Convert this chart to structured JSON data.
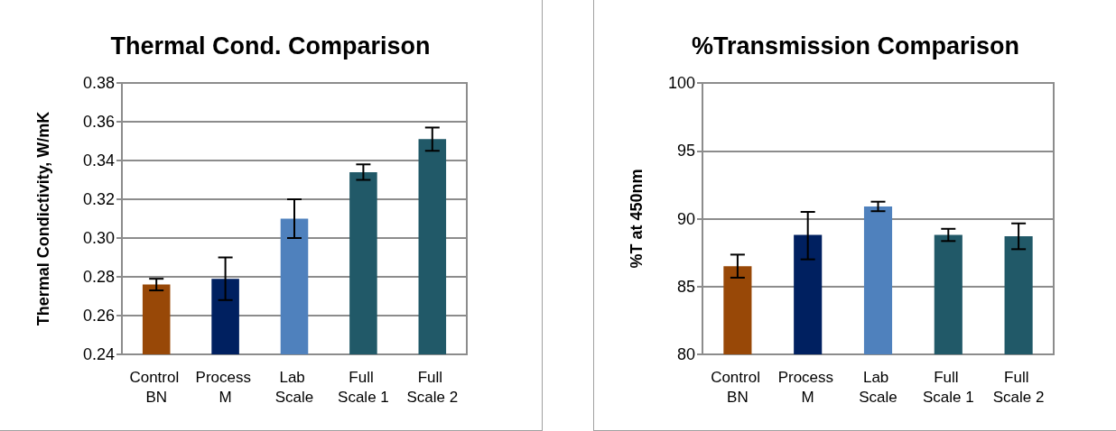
{
  "chart_data": [
    {
      "type": "bar",
      "title": "Thermal Cond. Comparison",
      "ylabel": "Thermal Condictivity, W/mK",
      "categories": [
        "Control BN",
        "Process M",
        "Lab Scale",
        "Full Scale 1",
        "Full Scale 2"
      ],
      "values": [
        0.276,
        0.279,
        0.31,
        0.334,
        0.351
      ],
      "colors": [
        "#984807",
        "#002060",
        "#4f81bd",
        "#215968",
        "#215968"
      ],
      "errors": [
        0.003,
        [
          0.268,
          0.29
        ],
        0.01,
        0.004,
        0.006
      ],
      "ylim": [
        0.24,
        0.38
      ],
      "yticks": [
        {
          "value": 0.24,
          "label": "0.24"
        },
        {
          "value": 0.26,
          "label": "0.26"
        },
        {
          "value": 0.28,
          "label": "0.28"
        },
        {
          "value": 0.3,
          "label": "0.30"
        },
        {
          "value": 0.32,
          "label": "0.32"
        },
        {
          "value": 0.34,
          "label": "0.34"
        },
        {
          "value": 0.36,
          "label": "0.36"
        },
        {
          "value": 0.38,
          "label": "0.38"
        }
      ],
      "grid": "y"
    },
    {
      "type": "bar",
      "title": "%Transmission Comparison",
      "ylabel": "%T at 450nm",
      "categories": [
        "Control BN",
        "Process M",
        "Lab Scale",
        "Full Scale 1",
        "Full Scale 2"
      ],
      "values": [
        86.5,
        88.8,
        90.9,
        88.8,
        88.7
      ],
      "colors": [
        "#984807",
        "#002060",
        "#4f81bd",
        "#215968",
        "#215968"
      ],
      "errors": [
        0.85,
        [
          87.0,
          90.5
        ],
        0.35,
        0.45,
        0.95
      ],
      "ylim": [
        80,
        100
      ],
      "yticks": [
        80,
        85,
        90,
        95,
        100
      ],
      "grid": "y"
    }
  ]
}
